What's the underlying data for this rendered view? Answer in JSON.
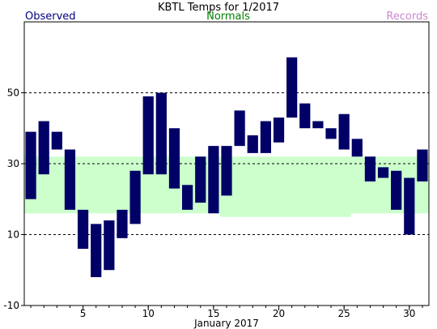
{
  "chart_data": {
    "type": "bar",
    "title": "KBTL Temps for  1/2017",
    "legend": {
      "observed": "Observed",
      "normals": "Normals",
      "records": "Records"
    },
    "xlabel": "January 2017",
    "ylabel": "",
    "xlim": [
      0.5,
      31.5
    ],
    "ylim": [
      -10,
      70
    ],
    "y_ticks": [
      -10,
      10,
      30,
      50
    ],
    "y_tick_labels": [
      "-10",
      "10",
      "30",
      "50"
    ],
    "x_ticks": [
      5,
      10,
      15,
      20,
      25,
      30
    ],
    "x_tick_labels": [
      "5",
      "10",
      "15",
      "20",
      "25",
      "30"
    ],
    "grid": "dashed horizontal at 10, 30, 50",
    "colors": {
      "observed_bar": "#000066",
      "normals_band": "#ccffcc",
      "observed_text": "#000080",
      "normals_text": "#008000",
      "records_text": "#cc88cc"
    },
    "observed": {
      "days": [
        1,
        2,
        3,
        4,
        5,
        6,
        7,
        8,
        9,
        10,
        11,
        12,
        13,
        14,
        15,
        16,
        17,
        18,
        19,
        20,
        21,
        22,
        23,
        24,
        25,
        26,
        27,
        28,
        29,
        30,
        31
      ],
      "highs": [
        39,
        42,
        39,
        34,
        17,
        13,
        14,
        17,
        28,
        49,
        50,
        40,
        24,
        32,
        35,
        35,
        45,
        38,
        42,
        43,
        60,
        47,
        42,
        40,
        44,
        37,
        32,
        29,
        28,
        26,
        34
      ],
      "lows": [
        20,
        27,
        34,
        17,
        6,
        -2,
        0,
        9,
        13,
        27,
        27,
        23,
        17,
        19,
        16,
        21,
        35,
        33,
        33,
        36,
        43,
        40,
        40,
        37,
        34,
        32,
        25,
        26,
        17,
        10,
        25
      ]
    },
    "normals": {
      "days": [
        1,
        2,
        3,
        4,
        5,
        6,
        7,
        8,
        9,
        10,
        11,
        12,
        13,
        14,
        15,
        16,
        17,
        18,
        19,
        20,
        21,
        22,
        23,
        24,
        25,
        26,
        27,
        28,
        29,
        30,
        31
      ],
      "highs": [
        32,
        32,
        32,
        32,
        32,
        32,
        32,
        32,
        32,
        32,
        32,
        32,
        32,
        32,
        32,
        32,
        32,
        32,
        32,
        32,
        32,
        32,
        32,
        32,
        32,
        32,
        32,
        32,
        32,
        32,
        32
      ],
      "lows": [
        16,
        16,
        16,
        16,
        16,
        16,
        16,
        16,
        16,
        16,
        16,
        16,
        16,
        16,
        16,
        15,
        15,
        15,
        15,
        15,
        15,
        15,
        15,
        15,
        15,
        16,
        16,
        16,
        16,
        16,
        16
      ]
    }
  }
}
